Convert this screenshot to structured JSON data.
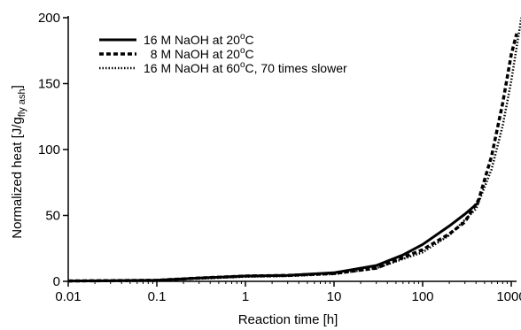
{
  "chart_data": {
    "type": "line",
    "xscale": "log",
    "xlim": [
      0.01,
      1000
    ],
    "ylim": [
      0,
      200
    ],
    "xlabel": "Reaction time [h]",
    "ylabel": {
      "main": "Normalized heat [J/g",
      "sub": "fly ash",
      "tail": "]"
    },
    "xticks": [
      {
        "v": 0.01,
        "label": "0.01"
      },
      {
        "v": 0.1,
        "label": "0.1"
      },
      {
        "v": 1,
        "label": "1"
      },
      {
        "v": 10,
        "label": "10"
      },
      {
        "v": 100,
        "label": "100"
      },
      {
        "v": 1000,
        "label": "1000"
      }
    ],
    "yticks": [
      {
        "v": 0,
        "label": "0"
      },
      {
        "v": 50,
        "label": "50"
      },
      {
        "v": 100,
        "label": "100"
      },
      {
        "v": 150,
        "label": "150"
      },
      {
        "v": 200,
        "label": "200"
      }
    ],
    "legend_position": "top-left",
    "series": [
      {
        "name": "16 M NaOH at 20°C",
        "legend": {
          "pre": "16 M NaOH at 20",
          "sup": "o",
          "post": "C"
        },
        "style": "solid",
        "color": "#000000",
        "x": [
          0.01,
          0.1,
          0.3,
          1,
          3,
          10,
          30,
          60,
          100,
          200,
          300,
          430
        ],
        "y": [
          0.3,
          0.8,
          2.5,
          4,
          4.5,
          6.5,
          12,
          20,
          28,
          42,
          51,
          60
        ]
      },
      {
        "name": "8 M NaOH at 20°C",
        "legend": {
          "pre": "  8 M NaOH at 20",
          "sup": "o",
          "post": "C"
        },
        "style": "dashed",
        "color": "#000000",
        "x": [
          0.01,
          0.1,
          0.3,
          1,
          3,
          10,
          30,
          100,
          200,
          300,
          430,
          600,
          800,
          1000,
          1150
        ],
        "y": [
          0.3,
          0.8,
          2.5,
          4,
          4.5,
          6,
          10,
          24,
          36,
          45,
          62,
          95,
          135,
          172,
          188
        ]
      },
      {
        "name": "16 M NaOH at 60°C, 70 times slower",
        "legend": {
          "pre": "16 M NaOH at 60",
          "sup": "o",
          "post": "C, 70 times slower"
        },
        "style": "dotted",
        "color": "#000000",
        "x": [
          0.01,
          0.1,
          0.3,
          1,
          3,
          10,
          30,
          100,
          200,
          400,
          600,
          800,
          1000,
          1300
        ],
        "y": [
          0.3,
          0.8,
          2,
          3.5,
          4,
          5.5,
          10,
          22,
          35,
          55,
          85,
          118,
          152,
          200
        ]
      }
    ]
  }
}
